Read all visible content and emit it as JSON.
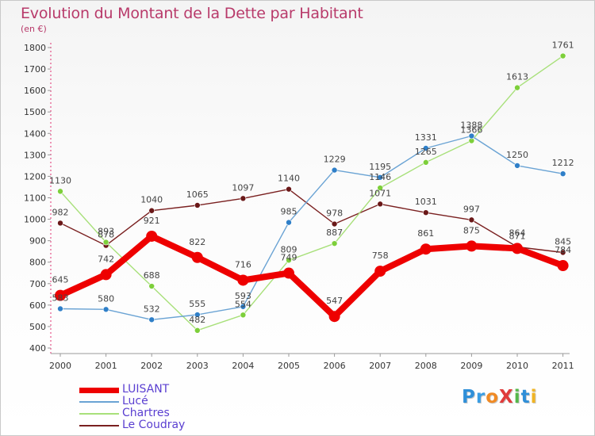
{
  "title": "Evolution du Montant de la Dette par Habitant",
  "subtitle": "(en €)",
  "logo": {
    "text": "Proxiti",
    "letters": [
      {
        "ch": "P",
        "color": "#2f8fd8"
      },
      {
        "ch": "r",
        "color": "#3a9de3"
      },
      {
        "ch": "o",
        "color": "#f08a24"
      },
      {
        "ch": "X",
        "color": "#e03a3a"
      },
      {
        "ch": "i",
        "color": "#55b84a"
      },
      {
        "ch": "t",
        "color": "#2f8fd8"
      },
      {
        "ch": "i",
        "color": "#f0b424"
      }
    ]
  },
  "chart_data": {
    "type": "line",
    "title": "Evolution du Montant de la Dette par Habitant",
    "subtitle": "(en €)",
    "xlabel": "",
    "ylabel": "",
    "categories": [
      "2000",
      "2001",
      "2002",
      "2003",
      "2004",
      "2005",
      "2006",
      "2007",
      "2008",
      "2009",
      "2010",
      "2011"
    ],
    "ylim": [
      400,
      1800
    ],
    "yticks": [
      400,
      500,
      600,
      700,
      800,
      900,
      1000,
      1100,
      1200,
      1300,
      1400,
      1500,
      1600,
      1700,
      1800
    ],
    "grid": false,
    "legend": "bottom-left",
    "series": [
      {
        "name": "Le Coudray",
        "color": "#7a2020",
        "marker": "#6a1818",
        "width": 1.4,
        "radius": 3.5,
        "values": [
          982,
          878,
          1040,
          1065,
          1097,
          1140,
          978,
          1071,
          1031,
          997,
          871,
          845
        ]
      },
      {
        "name": "Chartres",
        "color": "#a8e07a",
        "marker": "#7dcf3a",
        "width": 1.4,
        "radius": 3.5,
        "values": [
          1130,
          893,
          688,
          482,
          554,
          809,
          887,
          1146,
          1265,
          1366,
          1613,
          1761
        ]
      },
      {
        "name": "Lucé",
        "color": "#6aa3d4",
        "marker": "#2f7fc8",
        "width": 1.4,
        "radius": 3.5,
        "values": [
          583,
          580,
          532,
          555,
          593,
          985,
          1229,
          1195,
          1331,
          1388,
          1250,
          1212
        ]
      },
      {
        "name": "LUISANT",
        "color": "#ee0000",
        "marker": "#ee0000",
        "width": 8,
        "radius": 7,
        "values": [
          645,
          742,
          921,
          822,
          716,
          749,
          547,
          758,
          861,
          875,
          864,
          784
        ]
      }
    ],
    "data_labels": [
      {
        "series": "Le Coudray",
        "texts": [
          "982",
          "878",
          "1040",
          "1065",
          "1097",
          "1140",
          "978",
          "1071",
          "1031",
          "997",
          "871",
          "845"
        ]
      },
      {
        "series": "Chartres",
        "texts": [
          "1130",
          "893",
          "688",
          "482",
          "554",
          "809",
          "887",
          "1146",
          "1265",
          "1366",
          "1613",
          "1761"
        ]
      },
      {
        "series": "Lucé",
        "texts": [
          "583",
          "580",
          "532",
          "555",
          "593",
          "985",
          "1229",
          "1195",
          "1331",
          "1388",
          "1250",
          "1212"
        ]
      },
      {
        "series": "LUISANT",
        "texts": [
          "645",
          "742",
          "921",
          "822",
          "716",
          "749",
          "547",
          "758",
          "861",
          "875",
          "864",
          "784"
        ]
      }
    ]
  },
  "legend": {
    "items": [
      {
        "label": "LUISANT",
        "color": "#ee0000",
        "thickness": 7
      },
      {
        "label": "Lucé",
        "color": "#6aa3d4",
        "thickness": 2
      },
      {
        "label": "Chartres",
        "color": "#a8e07a",
        "thickness": 2
      },
      {
        "label": "Le Coudray",
        "color": "#7a2020",
        "thickness": 2
      }
    ]
  }
}
